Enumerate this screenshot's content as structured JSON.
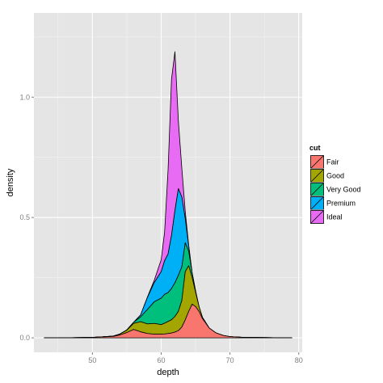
{
  "chart_data": {
    "type": "area",
    "stacked": true,
    "xlabel": "depth",
    "ylabel": "density",
    "xlim": [
      41.5,
      80.5
    ],
    "ylim": [
      -0.06,
      1.35
    ],
    "x_ticks": [
      50,
      60,
      70,
      80
    ],
    "y_ticks": [
      0.0,
      0.5,
      1.0
    ],
    "y_tick_labels": [
      "0.0",
      "0.5",
      "1.0"
    ],
    "grid": true,
    "legend": {
      "title": "cut",
      "position": "right"
    },
    "x": [
      43,
      45,
      50,
      53,
      54,
      55,
      56,
      57,
      58,
      59,
      60,
      60.5,
      61,
      61.5,
      62,
      62.5,
      63,
      63.5,
      64,
      64.5,
      65,
      65.5,
      66,
      67,
      68,
      69,
      70,
      72,
      75,
      79
    ],
    "series": [
      {
        "name": "Fair",
        "color": "#F8766D",
        "values": [
          0,
          0,
          0.002,
          0.006,
          0.012,
          0.022,
          0.035,
          0.025,
          0.018,
          0.015,
          0.015,
          0.016,
          0.018,
          0.02,
          0.024,
          0.03,
          0.045,
          0.075,
          0.11,
          0.14,
          0.13,
          0.11,
          0.08,
          0.04,
          0.02,
          0.01,
          0.005,
          0.002,
          0.001,
          0
        ]
      },
      {
        "name": "Good",
        "color": "#A3A500",
        "values": [
          0,
          0,
          0,
          0.001,
          0.004,
          0.01,
          0.025,
          0.042,
          0.04,
          0.045,
          0.04,
          0.045,
          0.05,
          0.055,
          0.065,
          0.08,
          0.11,
          0.2,
          0.19,
          0.11,
          0.06,
          0.02,
          0.005,
          0,
          0,
          0,
          0,
          0,
          0,
          0
        ]
      },
      {
        "name": "Very Good",
        "color": "#00BF7D",
        "values": [
          0,
          0,
          0,
          0,
          0,
          0.001,
          0.005,
          0.02,
          0.06,
          0.09,
          0.11,
          0.12,
          0.12,
          0.13,
          0.14,
          0.15,
          0.14,
          0.12,
          0.06,
          0.02,
          0.005,
          0,
          0,
          0,
          0,
          0,
          0,
          0,
          0,
          0
        ]
      },
      {
        "name": "Premium",
        "color": "#00B0F6",
        "values": [
          0,
          0,
          0,
          0,
          0,
          0,
          0,
          0.008,
          0.05,
          0.08,
          0.11,
          0.14,
          0.16,
          0.22,
          0.3,
          0.36,
          0.29,
          0.1,
          0.02,
          0,
          0,
          0,
          0,
          0,
          0,
          0,
          0,
          0,
          0,
          0
        ]
      },
      {
        "name": "Ideal",
        "color": "#E76BF3",
        "values": [
          0,
          0,
          0,
          0,
          0,
          0,
          0,
          0,
          0.002,
          0.01,
          0.05,
          0.12,
          0.35,
          0.65,
          0.66,
          0.28,
          0.12,
          0.03,
          0.005,
          0,
          0,
          0,
          0,
          0,
          0,
          0,
          0,
          0,
          0,
          0
        ]
      }
    ]
  }
}
